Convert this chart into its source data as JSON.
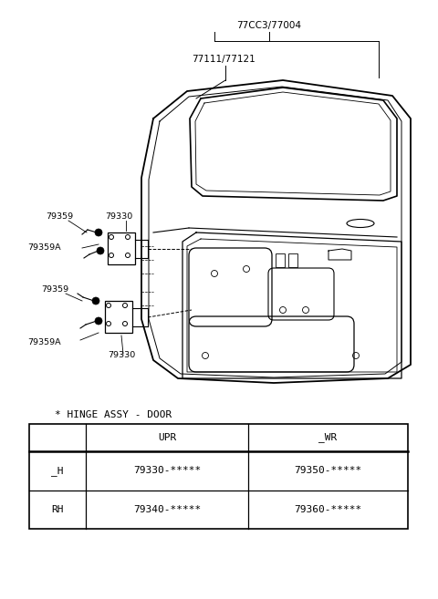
{
  "bg_color": "#ffffff",
  "fig_width": 4.8,
  "fig_height": 6.57,
  "dpi": 100,
  "title_label": "* HINGE ASSY - DOOR",
  "labels": {
    "77003": "77CC3/77004",
    "77111": "77111/77121",
    "79359_u_top": "79359",
    "79330_u": "79330",
    "79359A_u": "79359A",
    "79359_l": "79359",
    "79359A_l": "79359A",
    "79330_l": "79330"
  },
  "table": {
    "title": "* HINGE ASSY - DOOR",
    "h1": "",
    "h2": "UPR",
    "h3": "_WR",
    "r1c1": "_H",
    "r1c2": "79330-*****",
    "r1c3": "79350-*****",
    "r2c1": "RH",
    "r2c2": "79340-*****",
    "r2c3": "79360-*****"
  }
}
